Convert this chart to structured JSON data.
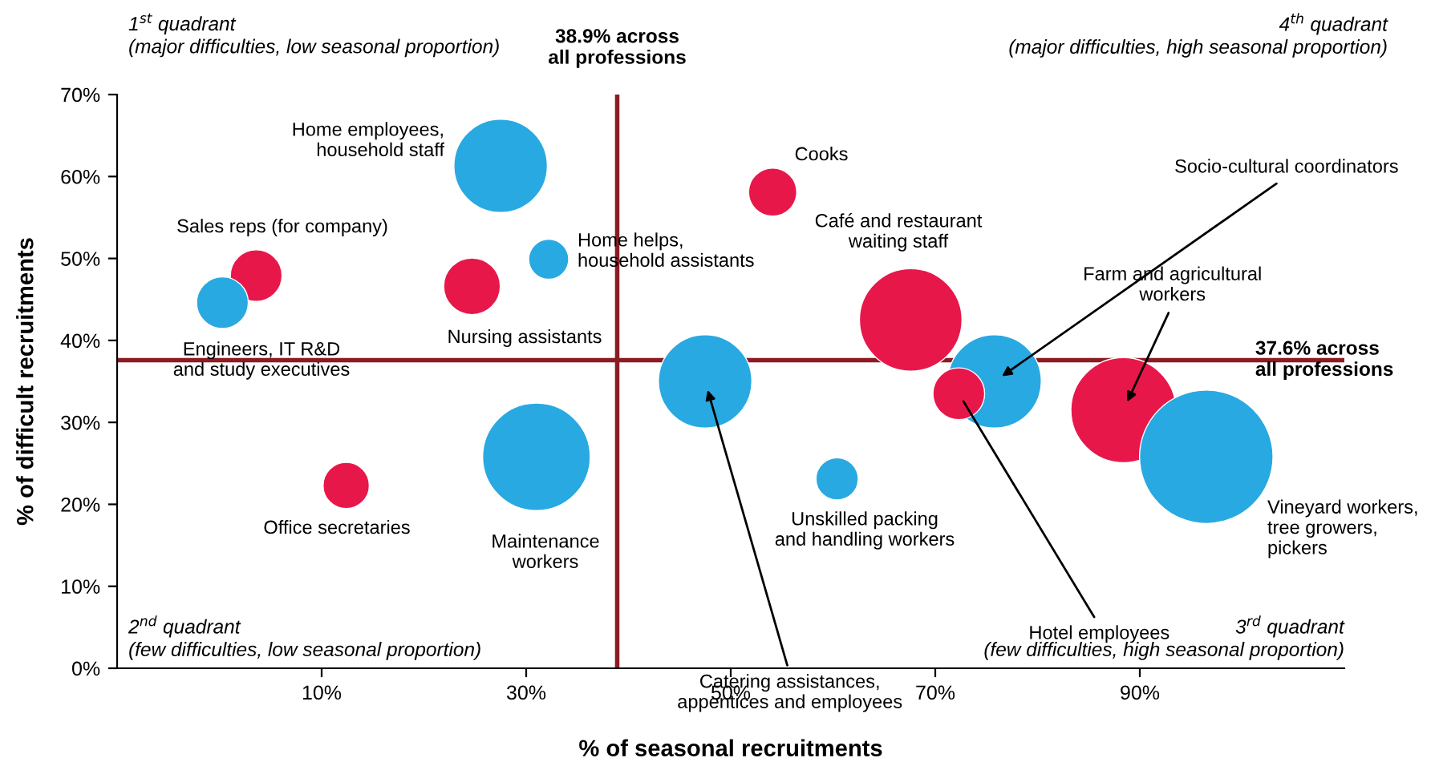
{
  "chart_data": {
    "type": "bubble",
    "xlabel": "% of seasonal recruitments",
    "ylabel": "% of difficult recruitments",
    "xlim": [
      -10,
      110
    ],
    "xticks": [
      {
        "value": 10,
        "label": "10%"
      },
      {
        "value": 30,
        "label": "30%"
      },
      {
        "value": 50,
        "label": "50%"
      },
      {
        "value": 70,
        "label": "70%"
      },
      {
        "value": 90,
        "label": "90%"
      }
    ],
    "ylim": [
      0,
      70
    ],
    "yticks": [
      {
        "value": 0,
        "label": "0%"
      },
      {
        "value": 10,
        "label": "10%"
      },
      {
        "value": 20,
        "label": "20%"
      },
      {
        "value": 30,
        "label": "30%"
      },
      {
        "value": 40,
        "label": "40%"
      },
      {
        "value": 50,
        "label": "50%"
      },
      {
        "value": 60,
        "label": "60%"
      },
      {
        "value": 70,
        "label": "70%"
      }
    ],
    "grid": false,
    "legend": false,
    "series": [
      {
        "x": [
          27.5,
          3.6,
          0.3,
          32.2,
          24.7,
          54.1,
          67.6,
          75.8,
          72.3,
          88.4,
          96.5,
          47.5,
          31.0,
          60.4,
          12.4
        ],
        "values": [
          61.3,
          47.9,
          44.6,
          49.9,
          46.6,
          58.1,
          42.5,
          35.0,
          33.5,
          31.5,
          25.8,
          35.0,
          25.8,
          23.1,
          22.3
        ],
        "sizes": [
          0.49,
          0.15,
          0.15,
          0.09,
          0.18,
          0.13,
          0.59,
          0.49,
          0.15,
          0.62,
          1,
          0.49,
          0.65,
          0.1,
          0.12
        ],
        "colors": [
          "#29a9e1",
          "#e8174a",
          "#29a9e1",
          "#29a9e1",
          "#e8174a",
          "#e8174a",
          "#e8174a",
          "#29a9e1",
          "#e8174a",
          "#e8174a",
          "#29a9e1",
          "#29a9e1",
          "#29a9e1",
          "#29a9e1",
          "#e8174a"
        ]
      }
    ],
    "ref_lines": [
      {
        "axis": "x",
        "value": 38.9,
        "label": "38.9% across\nall professions",
        "color": "#8b1c24"
      },
      {
        "axis": "y",
        "value": 37.6,
        "label": "37.6% across\nall professions",
        "color": "#8b1c24"
      }
    ],
    "annotations": [
      "1$^{st}$ quadrant\n(major difficulties, low seasonal proportion)",
      "4$^{th}$ quadrant\n(major difficulties, high seasonal proportion)",
      "2$^{nd}$ quadrant\n(few difficulties, low seasonal proportion)",
      "3$^{rd}$ quadrant\n(few difficulties, high seasonal proportion)",
      "Home employees,\nhousehold staff",
      "Sales reps (for company)",
      "Engineers, IT R&D\nand study executives",
      "Home helps,\nhousehold assistants",
      "Nursing assistants",
      "Cooks",
      "Café and restaurant\nwaiting staff",
      "Vineyard workers,\ntree growers,\npickers",
      "Maintenance\nworkers",
      "Unskilled packing\nand handling workers",
      "Office secretaries",
      {
        "text": "Socio-cultural coordinators",
        "x": 75.8,
        "y": 35.0
      },
      {
        "text": "Hotel employees",
        "x": 72.3,
        "y": 33.5
      },
      {
        "text": "Farm and agricultural\nworkers",
        "x": 88.4,
        "y": 31.5
      },
      {
        "text": "Catering assistances,\nappentices and employees",
        "x": 47.5,
        "y": 35.0
      }
    ]
  }
}
